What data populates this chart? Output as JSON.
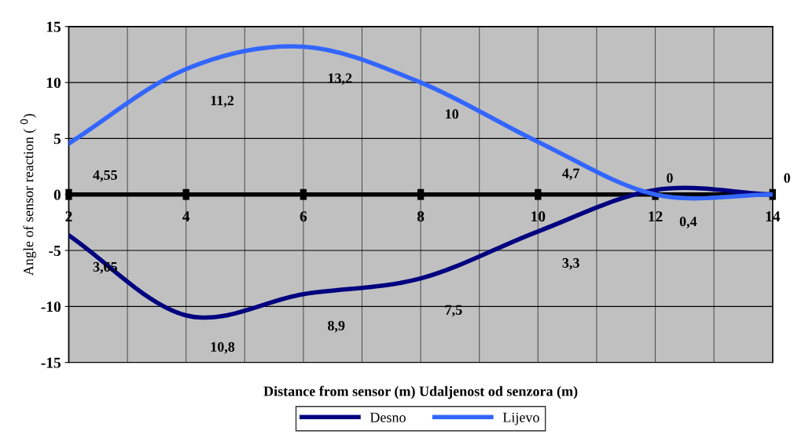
{
  "chart_data": {
    "type": "line",
    "xlabel": "Distance from sensor (m) Udaljenost od senzora (m)",
    "ylabel": "Angle of sensor reaction ( $^{0}$)",
    "x": [
      2,
      4,
      6,
      8,
      10,
      12,
      14
    ],
    "series": [
      {
        "name": "Desno",
        "color": "#000080",
        "values": [
          -3.65,
          -10.8,
          -8.9,
          -7.5,
          -3.3,
          0.4,
          0
        ]
      },
      {
        "name": "Lijevo",
        "color": "#3366ff",
        "values": [
          4.55,
          11.2,
          13.2,
          10,
          4.7,
          0,
          0
        ]
      }
    ],
    "annotations": [
      {
        "text": "3,65",
        "x": 2,
        "y": -3.65
      },
      {
        "text": "10,8",
        "x": 4,
        "y": -10.8
      },
      {
        "text": "8,9",
        "x": 6,
        "y": -8.9
      },
      {
        "text": "7,5",
        "x": 8,
        "y": -7.5
      },
      {
        "text": "3,3",
        "x": 10,
        "y": -3.3
      },
      {
        "text": "0,4",
        "x": 12,
        "y": 0.4
      },
      {
        "text": "4,55",
        "x": 2,
        "y": 4.55
      },
      {
        "text": "11,2",
        "x": 4,
        "y": 11.2
      },
      {
        "text": "13,2",
        "x": 6,
        "y": 13.2
      },
      {
        "text": "10",
        "x": 8,
        "y": 10
      },
      {
        "text": "4,7",
        "x": 10,
        "y": 4.7
      },
      {
        "text": "0",
        "x": 12,
        "y": 0
      },
      {
        "text": "0",
        "x": 14,
        "y": 0
      }
    ],
    "xlim": [
      2,
      14
    ],
    "xticks": [
      2,
      4,
      6,
      8,
      10,
      12,
      14
    ],
    "ylim": [
      -15,
      15
    ],
    "yticks": [
      -15,
      -10,
      -5,
      0,
      5,
      10,
      15
    ],
    "grid": true,
    "legend": "bottom",
    "marker": "none",
    "line_style": "solid"
  }
}
